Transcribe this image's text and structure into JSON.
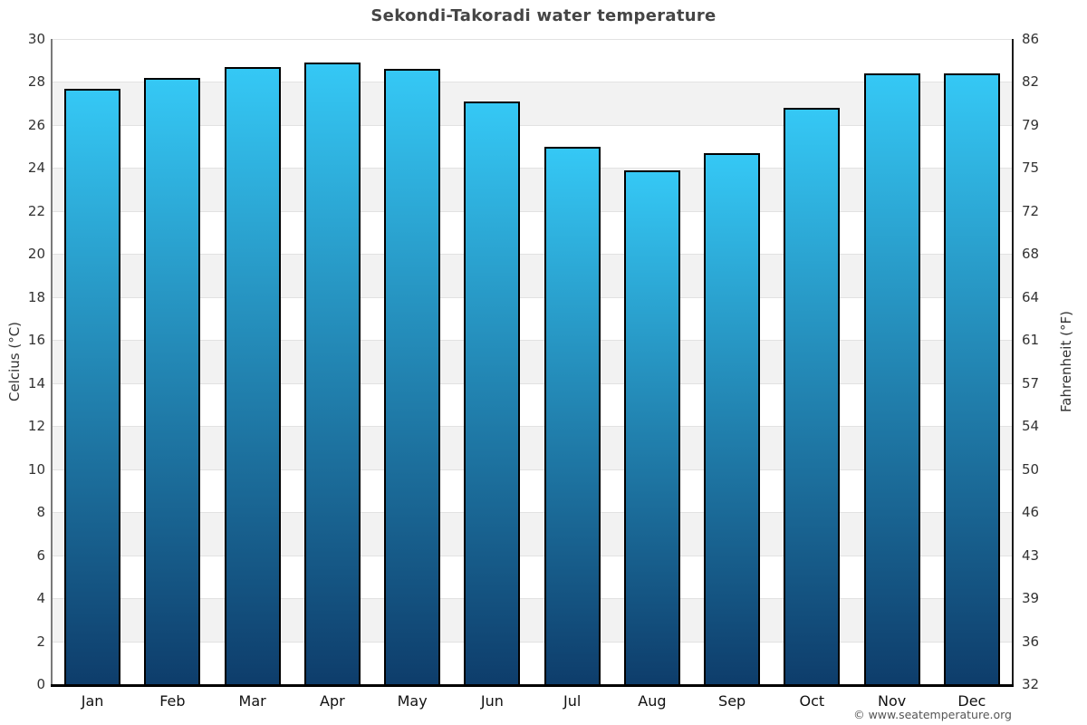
{
  "title": "Sekondi-Takoradi water temperature",
  "copyright": "© www.seatemperature.org",
  "chart_data": {
    "type": "bar",
    "title": "Sekondi-Takoradi water temperature",
    "categories": [
      "Jan",
      "Feb",
      "Mar",
      "Apr",
      "May",
      "Jun",
      "Jul",
      "Aug",
      "Sep",
      "Oct",
      "Nov",
      "Dec"
    ],
    "values": [
      27.7,
      28.2,
      28.7,
      28.9,
      28.6,
      27.1,
      25.0,
      23.9,
      24.7,
      26.8,
      28.4,
      28.4
    ],
    "series_name": "Water temperature (°C)",
    "xlabel": "",
    "ylabel_left": "Celcius (°C)",
    "ylabel_right": "Fahrenheit (°F)",
    "ylim": [
      0,
      30
    ],
    "ytick_step": 2,
    "celsius_ticks": [
      30,
      28,
      26,
      24,
      22,
      20,
      18,
      16,
      14,
      12,
      10,
      8,
      6,
      4,
      2,
      0
    ],
    "fahrenheit_ticks": [
      86,
      82,
      79,
      75,
      72,
      68,
      64,
      61,
      57,
      54,
      50,
      46,
      43,
      39,
      36,
      32
    ],
    "legend": "none",
    "grid": "horizontal gridlines every 2°C with alternating gray/white bands",
    "colors": {
      "bar_gradient_top": "#35c8f5",
      "bar_gradient_bottom": "#0e3d6b",
      "bar_border": "#000000",
      "band_gray": "#f2f2f2",
      "band_white": "#ffffff",
      "gridline": "#e2e2e2",
      "left_axis_line": "#7a7a7a",
      "right_axis_line": "#1a1a1a",
      "bottom_axis_line": "#000000",
      "title_text": "#454545",
      "tick_text": "#333333",
      "month_text": "#111111",
      "copyright_text": "#555555"
    }
  }
}
